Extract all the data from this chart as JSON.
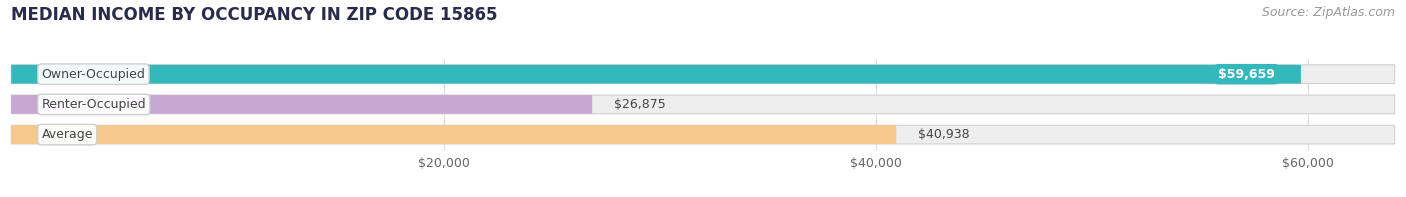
{
  "title": "MEDIAN INCOME BY OCCUPANCY IN ZIP CODE 15865",
  "source": "Source: ZipAtlas.com",
  "categories": [
    "Owner-Occupied",
    "Renter-Occupied",
    "Average"
  ],
  "values": [
    59659,
    26875,
    40938
  ],
  "bar_colors": [
    "#35b8bc",
    "#c8a8d2",
    "#f5c98c"
  ],
  "bar_bg_color": "#eeeeee",
  "label_values": [
    "$59,659",
    "$26,875",
    "$40,938"
  ],
  "xlim": [
    0,
    64000
  ],
  "xticks": [
    20000,
    40000,
    60000
  ],
  "xtick_labels": [
    "$20,000",
    "$40,000",
    "$60,000"
  ],
  "title_fontsize": 12,
  "source_fontsize": 9,
  "label_fontsize": 9,
  "value_fontsize": 9,
  "bar_height": 0.62,
  "background_color": "#ffffff",
  "grid_color": "#dddddd",
  "text_color": "#444444",
  "source_color": "#999999"
}
